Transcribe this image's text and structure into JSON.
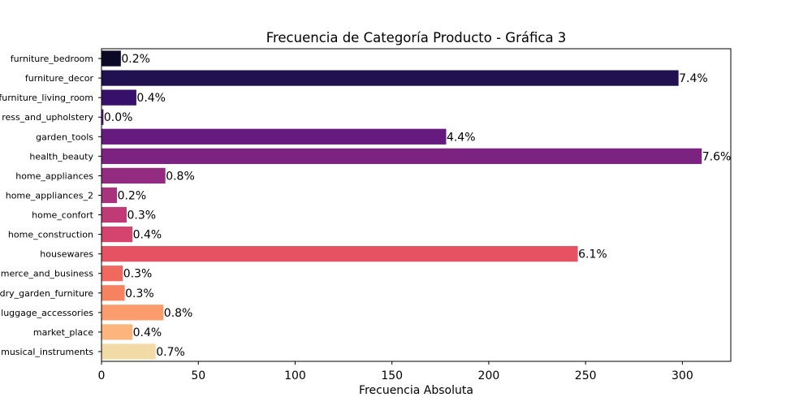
{
  "chart_data": {
    "type": "bar",
    "orientation": "horizontal",
    "title": "Frecuencia de Categoría Producto - Gráfica 3",
    "xlabel": "Frecuencia Absoluta",
    "ylabel": "",
    "xlim": [
      0,
      325
    ],
    "xticks": [
      0,
      50,
      100,
      150,
      200,
      250,
      300
    ],
    "xtick_labels": [
      "0",
      "50",
      "100",
      "150",
      "200",
      "250",
      "300"
    ],
    "grid": false,
    "categories": [
      "furniture_bedroom",
      "furniture_decor",
      "furniture_living_room",
      "furniture_mattress_and_upholstery",
      "garden_tools",
      "health_beauty",
      "home_appliances",
      "home_appliances_2",
      "home_confort",
      "home_construction",
      "housewares",
      "industry_commerce_and_business",
      "la_cuisine_kitchen_dining_laundry_garden_furniture",
      "luggage_accessories",
      "market_place",
      "musical_instruments"
    ],
    "category_labels": [
      "furniture_bedroom",
      "furniture_decor",
      "furniture_living_room",
      "ress_and_upholstery",
      "garden_tools",
      "health_beauty",
      "home_appliances",
      "home_appliances_2",
      "home_confort",
      "home_construction",
      "housewares",
      "merce_and_business",
      "dry_garden_furniture",
      "luggage_accessories",
      "market_place",
      "musical_instruments"
    ],
    "values": [
      10,
      298,
      18,
      1,
      178,
      310,
      33,
      8,
      13,
      16,
      246,
      11,
      12,
      32,
      16,
      28
    ],
    "data_labels": [
      "0.2%",
      "7.4%",
      "0.4%",
      "0.0%",
      "4.4%",
      "7.6%",
      "0.8%",
      "0.2%",
      "0.3%",
      "0.4%",
      "6.1%",
      "0.3%",
      "0.3%",
      "0.8%",
      "0.4%",
      "0.7%"
    ],
    "colors": [
      "#0c0926",
      "#221150",
      "#36106b",
      "#4f127b",
      "#661a80",
      "#7c2382",
      "#932b80",
      "#aa337d",
      "#c03a76",
      "#d5446d",
      "#e75263",
      "#f1685f",
      "#f7825f",
      "#fa9c6b",
      "#fcb57d",
      "#f3dba7"
    ]
  }
}
